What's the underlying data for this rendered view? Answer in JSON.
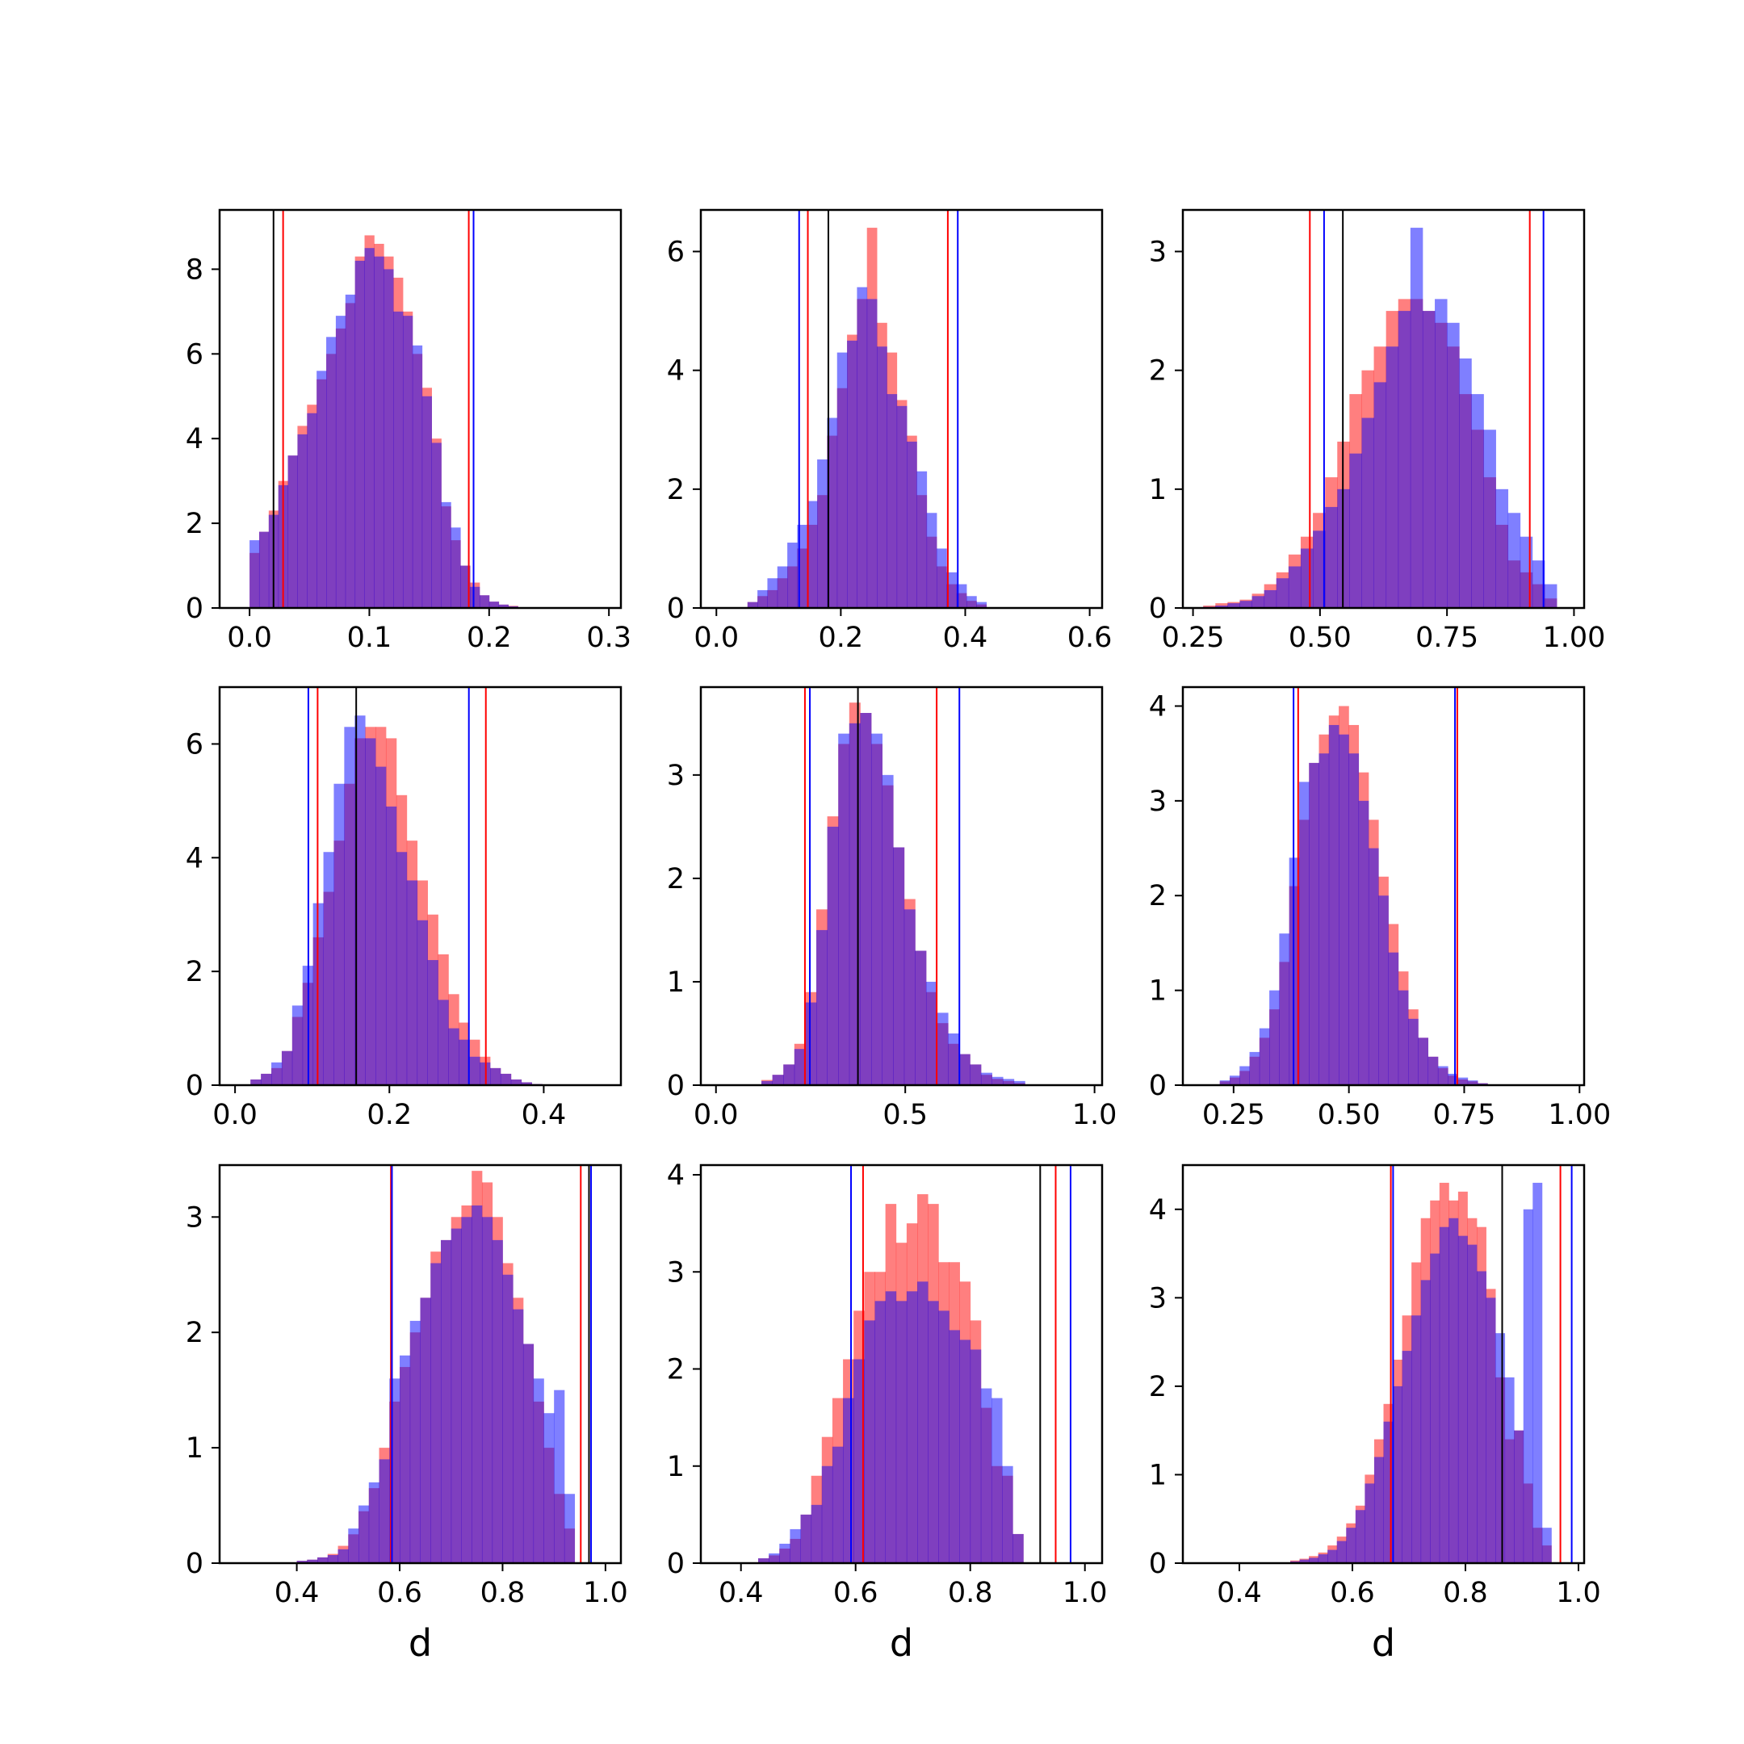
{
  "colors": {
    "red_hist": "#ff0000",
    "blue_hist": "#0000ff",
    "red_line": "#ff0000",
    "blue_line": "#0000ff",
    "black_line": "#000000"
  },
  "chart_data": [
    {
      "type": "bar",
      "subtype": "histogram",
      "title": "",
      "xlabel": "",
      "xlim": [
        -0.025,
        0.31
      ],
      "ylim": [
        0,
        9.4
      ],
      "xticks": [
        0.0,
        0.1,
        0.2,
        0.3
      ],
      "xtick_labels": [
        "0.0",
        "0.1",
        "0.2",
        "0.3"
      ],
      "yticks": [
        0,
        2,
        4,
        6,
        8
      ],
      "ytick_labels": [
        "0",
        "2",
        "4",
        "6",
        "8"
      ],
      "vlines": {
        "black": [
          0.02
        ],
        "red": [
          0.028,
          0.183
        ],
        "blue": [
          0.187
        ]
      },
      "series": [
        {
          "color": "red",
          "start": 0.0,
          "width": 0.008,
          "values": [
            1.3,
            1.8,
            2.3,
            3.0,
            3.6,
            4.3,
            4.8,
            5.4,
            6.0,
            6.6,
            7.2,
            8.3,
            8.8,
            8.6,
            8.3,
            7.8,
            7.0,
            6.0,
            5.2,
            4.0,
            2.4,
            1.6,
            1.0,
            0.6,
            0.3,
            0.15,
            0.08,
            0.05
          ]
        },
        {
          "color": "blue",
          "start": 0.0,
          "width": 0.008,
          "values": [
            1.6,
            1.8,
            2.2,
            2.9,
            3.6,
            4.1,
            4.6,
            5.6,
            6.4,
            6.9,
            7.4,
            8.2,
            8.5,
            8.3,
            8.0,
            7.0,
            6.9,
            6.2,
            5.0,
            3.9,
            2.5,
            1.9,
            1.0,
            0.5,
            0.3,
            0.15,
            0.08,
            0.04
          ]
        }
      ]
    },
    {
      "type": "bar",
      "subtype": "histogram",
      "title": "",
      "xlabel": "",
      "xlim": [
        -0.025,
        0.62
      ],
      "ylim": [
        0,
        6.7
      ],
      "xticks": [
        0.0,
        0.2,
        0.4,
        0.6
      ],
      "xtick_labels": [
        "0.0",
        "0.2",
        "0.4",
        "0.6"
      ],
      "yticks": [
        0,
        2,
        4,
        6
      ],
      "ytick_labels": [
        "0",
        "2",
        "4",
        "6"
      ],
      "vlines": {
        "black": [
          0.18
        ],
        "red": [
          0.147,
          0.372
        ],
        "blue": [
          0.133,
          0.388
        ]
      },
      "series": [
        {
          "color": "red",
          "start": 0.05,
          "width": 0.016,
          "values": [
            0.1,
            0.2,
            0.3,
            0.5,
            0.7,
            1.0,
            1.4,
            1.9,
            2.9,
            3.7,
            4.6,
            5.2,
            6.4,
            4.8,
            4.3,
            3.5,
            2.9,
            1.9,
            1.2,
            0.7,
            0.4,
            0.25,
            0.12,
            0.06
          ]
        },
        {
          "color": "blue",
          "start": 0.05,
          "width": 0.016,
          "values": [
            0.1,
            0.3,
            0.5,
            0.7,
            1.1,
            1.4,
            1.8,
            2.5,
            3.2,
            4.3,
            4.5,
            5.4,
            5.2,
            4.4,
            3.6,
            3.4,
            2.8,
            2.3,
            1.6,
            1.0,
            0.6,
            0.4,
            0.2,
            0.1
          ]
        }
      ]
    },
    {
      "type": "bar",
      "subtype": "histogram",
      "title": "",
      "xlabel": "",
      "xlim": [
        0.23,
        1.02
      ],
      "ylim": [
        0,
        3.35
      ],
      "xticks": [
        0.25,
        0.5,
        0.75,
        1.0
      ],
      "xtick_labels": [
        "0.25",
        "0.50",
        "0.75",
        "1.00"
      ],
      "yticks": [
        0,
        1,
        2,
        3
      ],
      "ytick_labels": [
        "0",
        "1",
        "2",
        "3"
      ],
      "vlines": {
        "black": [
          0.545
        ],
        "red": [
          0.48,
          0.913
        ],
        "blue": [
          0.508,
          0.94
        ]
      },
      "series": [
        {
          "color": "red",
          "start": 0.27,
          "width": 0.024,
          "values": [
            0.02,
            0.04,
            0.05,
            0.07,
            0.12,
            0.2,
            0.3,
            0.45,
            0.6,
            0.8,
            1.1,
            1.4,
            1.8,
            2.0,
            2.2,
            2.5,
            2.6,
            2.6,
            2.5,
            2.4,
            2.2,
            1.8,
            1.5,
            1.1,
            0.7,
            0.4,
            0.3,
            0.2,
            0.08
          ]
        },
        {
          "color": "blue",
          "start": 0.27,
          "width": 0.024,
          "values": [
            0.01,
            0.02,
            0.04,
            0.06,
            0.1,
            0.15,
            0.25,
            0.35,
            0.5,
            0.65,
            0.85,
            1.0,
            1.3,
            1.6,
            1.9,
            2.2,
            2.5,
            3.2,
            2.5,
            2.6,
            2.4,
            2.1,
            1.8,
            1.5,
            1.0,
            0.8,
            0.6,
            0.4,
            0.2
          ]
        }
      ]
    },
    {
      "type": "bar",
      "subtype": "histogram",
      "title": "",
      "xlabel": "",
      "xlim": [
        -0.02,
        0.5
      ],
      "ylim": [
        0,
        7.0
      ],
      "xticks": [
        0.0,
        0.2,
        0.4
      ],
      "xtick_labels": [
        "0.0",
        "0.2",
        "0.4"
      ],
      "yticks": [
        0,
        2,
        4,
        6
      ],
      "ytick_labels": [
        "0",
        "2",
        "4",
        "6"
      ],
      "vlines": {
        "black": [
          0.157
        ],
        "red": [
          0.107,
          0.325
        ],
        "blue": [
          0.095,
          0.303
        ]
      },
      "series": [
        {
          "color": "red",
          "start": 0.02,
          "width": 0.0135,
          "values": [
            0.1,
            0.2,
            0.3,
            0.6,
            1.2,
            1.8,
            2.6,
            3.4,
            4.3,
            5.3,
            6.1,
            6.3,
            6.3,
            6.1,
            5.1,
            4.3,
            3.6,
            3.0,
            2.3,
            1.6,
            1.1,
            0.8,
            0.5,
            0.3,
            0.2,
            0.1,
            0.05,
            0.02
          ]
        },
        {
          "color": "blue",
          "start": 0.02,
          "width": 0.0135,
          "values": [
            0.1,
            0.2,
            0.4,
            0.6,
            1.4,
            2.1,
            3.2,
            4.1,
            5.3,
            6.3,
            6.5,
            6.1,
            5.6,
            4.9,
            4.1,
            3.6,
            2.9,
            2.2,
            1.5,
            1.0,
            0.8,
            0.5,
            0.4,
            0.3,
            0.2,
            0.1,
            0.05,
            0.02
          ]
        }
      ]
    },
    {
      "type": "bar",
      "subtype": "histogram",
      "title": "",
      "xlabel": "",
      "xlim": [
        -0.04,
        1.02
      ],
      "ylim": [
        0,
        3.85
      ],
      "xticks": [
        0.0,
        0.5,
        1.0
      ],
      "xtick_labels": [
        "0.0",
        "0.5",
        "1.0"
      ],
      "yticks": [
        0,
        1,
        2,
        3
      ],
      "ytick_labels": [
        "0",
        "1",
        "2",
        "3"
      ],
      "vlines": {
        "black": [
          0.375
        ],
        "red": [
          0.235,
          0.583
        ],
        "blue": [
          0.248,
          0.643
        ]
      },
      "series": [
        {
          "color": "red",
          "start": 0.12,
          "width": 0.029,
          "values": [
            0.05,
            0.1,
            0.2,
            0.4,
            0.9,
            1.7,
            2.6,
            3.3,
            3.7,
            3.6,
            3.3,
            2.9,
            2.3,
            1.8,
            1.3,
            0.9,
            0.6,
            0.4,
            0.3,
            0.2,
            0.1,
            0.06,
            0.04,
            0.02
          ]
        },
        {
          "color": "blue",
          "start": 0.12,
          "width": 0.029,
          "values": [
            0.04,
            0.1,
            0.2,
            0.35,
            0.8,
            1.5,
            2.5,
            3.4,
            3.5,
            3.6,
            3.4,
            3.0,
            2.3,
            1.7,
            1.3,
            1.0,
            0.7,
            0.5,
            0.3,
            0.2,
            0.12,
            0.08,
            0.06,
            0.04
          ]
        }
      ]
    },
    {
      "type": "bar",
      "subtype": "histogram",
      "title": "",
      "xlabel": "",
      "xlim": [
        0.14,
        1.01
      ],
      "ylim": [
        0,
        4.2
      ],
      "xticks": [
        0.25,
        0.5,
        0.75,
        1.0
      ],
      "xtick_labels": [
        "0.25",
        "0.50",
        "0.75",
        "1.00"
      ],
      "yticks": [
        0,
        1,
        2,
        3,
        4
      ],
      "ytick_labels": [
        "0",
        "1",
        "2",
        "3",
        "4"
      ],
      "vlines": {
        "black": [],
        "red": [
          0.39,
          0.735
        ],
        "blue": [
          0.38,
          0.73
        ]
      },
      "series": [
        {
          "color": "red",
          "start": 0.22,
          "width": 0.0215,
          "values": [
            0.04,
            0.08,
            0.15,
            0.3,
            0.5,
            0.8,
            1.3,
            2.1,
            2.8,
            3.4,
            3.7,
            3.9,
            4.0,
            3.8,
            3.3,
            2.8,
            2.2,
            1.7,
            1.2,
            0.8,
            0.5,
            0.3,
            0.18,
            0.1,
            0.06,
            0.04,
            0.02
          ]
        },
        {
          "color": "blue",
          "start": 0.22,
          "width": 0.0215,
          "values": [
            0.05,
            0.1,
            0.2,
            0.35,
            0.6,
            1.0,
            1.6,
            2.4,
            3.2,
            3.4,
            3.5,
            3.8,
            3.7,
            3.5,
            3.0,
            2.5,
            2.0,
            1.4,
            1.0,
            0.7,
            0.5,
            0.3,
            0.2,
            0.12,
            0.08,
            0.05,
            0.02
          ]
        }
      ]
    },
    {
      "type": "bar",
      "subtype": "histogram",
      "title": "",
      "xlabel": "d",
      "xlim": [
        0.25,
        1.03
      ],
      "ylim": [
        0,
        3.45
      ],
      "xticks": [
        0.4,
        0.6,
        0.8,
        1.0
      ],
      "xtick_labels": [
        "0.4",
        "0.6",
        "0.8",
        "1.0"
      ],
      "yticks": [
        0,
        1,
        2,
        3
      ],
      "ytick_labels": [
        "0",
        "1",
        "2",
        "3"
      ],
      "vlines": {
        "black": [
          0.968
        ],
        "red": [
          0.583,
          0.952
        ],
        "blue": [
          0.585,
          0.972
        ]
      },
      "series": [
        {
          "color": "red",
          "start": 0.4,
          "width": 0.02,
          "values": [
            0.02,
            0.03,
            0.05,
            0.08,
            0.15,
            0.25,
            0.45,
            0.65,
            1.0,
            1.4,
            1.7,
            2.0,
            2.3,
            2.7,
            2.8,
            3.0,
            3.1,
            3.4,
            3.3,
            3.0,
            2.6,
            2.3,
            1.9,
            1.4,
            1.0,
            0.6,
            0.3
          ]
        },
        {
          "color": "blue",
          "start": 0.4,
          "width": 0.02,
          "values": [
            0.02,
            0.03,
            0.05,
            0.07,
            0.12,
            0.3,
            0.5,
            0.7,
            0.9,
            1.6,
            1.8,
            2.1,
            2.3,
            2.6,
            2.8,
            2.9,
            3.0,
            3.1,
            3.0,
            2.8,
            2.5,
            2.2,
            1.9,
            1.6,
            1.3,
            1.5,
            0.6
          ]
        }
      ]
    },
    {
      "type": "bar",
      "subtype": "histogram",
      "title": "",
      "xlabel": "d",
      "xlim": [
        0.33,
        1.03
      ],
      "ylim": [
        0,
        4.1
      ],
      "xticks": [
        0.4,
        0.6,
        0.8,
        1.0
      ],
      "xtick_labels": [
        "0.4",
        "0.6",
        "0.8",
        "1.0"
      ],
      "yticks": [
        0,
        1,
        2,
        3,
        4
      ],
      "ytick_labels": [
        "0",
        "1",
        "2",
        "3",
        "4"
      ],
      "vlines": {
        "black": [
          0.922
        ],
        "red": [
          0.613,
          0.949
        ],
        "blue": [
          0.592,
          0.975
        ]
      },
      "series": [
        {
          "color": "red",
          "start": 0.43,
          "width": 0.0185,
          "values": [
            0.05,
            0.08,
            0.15,
            0.25,
            0.5,
            0.9,
            1.3,
            1.7,
            2.1,
            2.6,
            3.0,
            3.0,
            3.7,
            3.3,
            3.5,
            3.8,
            3.7,
            3.1,
            3.1,
            2.9,
            2.5,
            1.6,
            1.0,
            0.9,
            0.3
          ]
        },
        {
          "color": "blue",
          "start": 0.43,
          "width": 0.0185,
          "values": [
            0.05,
            0.1,
            0.2,
            0.35,
            0.5,
            0.6,
            1.0,
            1.2,
            1.7,
            2.1,
            2.5,
            2.7,
            2.8,
            2.7,
            2.8,
            2.9,
            2.7,
            2.6,
            2.4,
            2.3,
            2.2,
            1.8,
            1.7,
            1.0,
            0.3
          ]
        }
      ]
    },
    {
      "type": "bar",
      "subtype": "histogram",
      "title": "",
      "xlabel": "d",
      "xlim": [
        0.3,
        1.01
      ],
      "ylim": [
        0,
        4.5
      ],
      "xticks": [
        0.4,
        0.6,
        0.8,
        1.0
      ],
      "xtick_labels": [
        "0.4",
        "0.6",
        "0.8",
        "1.0"
      ],
      "yticks": [
        0,
        1,
        2,
        3,
        4
      ],
      "ytick_labels": [
        "0",
        "1",
        "2",
        "3",
        "4"
      ],
      "vlines": {
        "black": [
          0.865
        ],
        "red": [
          0.668,
          0.968
        ],
        "blue": [
          0.672,
          0.988
        ]
      },
      "series": [
        {
          "color": "red",
          "start": 0.49,
          "width": 0.0165,
          "values": [
            0.03,
            0.05,
            0.08,
            0.12,
            0.2,
            0.3,
            0.45,
            0.65,
            1.0,
            1.4,
            1.8,
            2.3,
            2.8,
            3.4,
            3.9,
            4.1,
            4.3,
            4.1,
            4.2,
            3.9,
            3.8,
            3.1,
            2.1,
            1.4,
            1.5,
            0.9,
            0.4,
            0.2
          ]
        },
        {
          "color": "blue",
          "start": 0.49,
          "width": 0.0165,
          "values": [
            0.02,
            0.04,
            0.06,
            0.1,
            0.15,
            0.25,
            0.4,
            0.6,
            0.9,
            1.2,
            1.6,
            2.0,
            2.4,
            2.8,
            3.2,
            3.5,
            3.8,
            3.9,
            3.7,
            3.6,
            3.3,
            3.0,
            2.6,
            2.1,
            1.5,
            4.0,
            4.3,
            0.4
          ]
        }
      ]
    }
  ]
}
